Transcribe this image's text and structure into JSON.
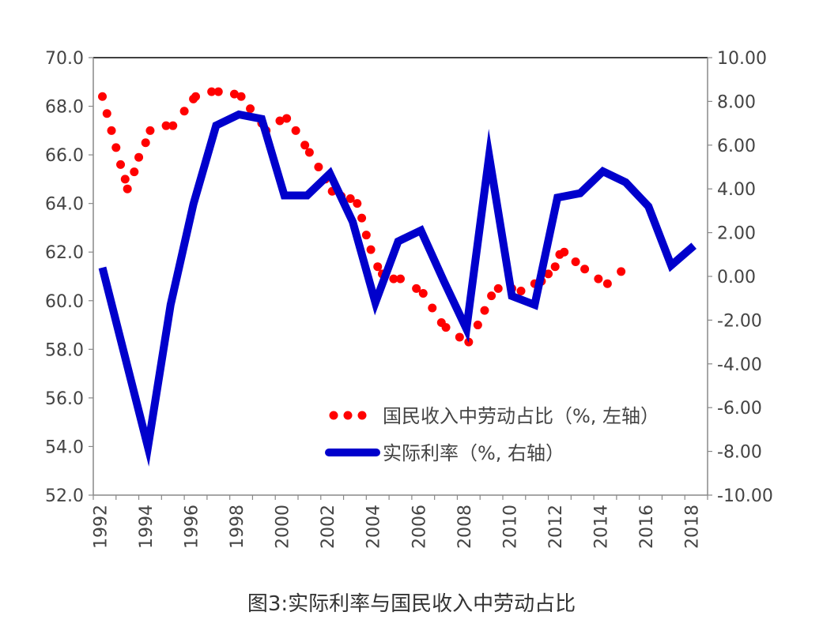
{
  "figure_caption": "图3:实际利率与国民收入中劳动占比",
  "chart_data": {
    "type": "line",
    "x_tick_labels": [
      "1992",
      "1994",
      "1996",
      "1998",
      "2000",
      "2002",
      "2004",
      "2006",
      "2008",
      "2010",
      "2012",
      "2014",
      "2016",
      "2018"
    ],
    "xlim": [
      1992,
      2019
    ],
    "y_left": {
      "ylim": [
        52.0,
        70.0
      ],
      "tick_labels": [
        "52.0",
        "54.0",
        "56.0",
        "58.0",
        "60.0",
        "62.0",
        "64.0",
        "66.0",
        "68.0",
        "70.0"
      ]
    },
    "y_right": {
      "ylim": [
        -10.0,
        10.0
      ],
      "tick_labels": [
        "-10.00",
        "-8.00",
        "-6.00",
        "-4.00",
        "-2.00",
        "0.00",
        "2.00",
        "4.00",
        "6.00",
        "8.00",
        "10.00"
      ]
    },
    "series": [
      {
        "name": "国民收入中劳动占比（%, 左轴）",
        "axis": "left",
        "style": "dotted",
        "color": "#ff0000",
        "points": [
          [
            1992.4,
            68.4
          ],
          [
            1992.6,
            67.7
          ],
          [
            1992.8,
            67.0
          ],
          [
            1993.0,
            66.3
          ],
          [
            1993.2,
            65.6
          ],
          [
            1993.4,
            65.0
          ],
          [
            1993.5,
            64.6
          ],
          [
            1993.8,
            65.3
          ],
          [
            1994.0,
            65.9
          ],
          [
            1994.3,
            66.5
          ],
          [
            1994.5,
            67.0
          ],
          [
            1995.2,
            67.2
          ],
          [
            1995.5,
            67.2
          ],
          [
            1996.0,
            67.8
          ],
          [
            1996.4,
            68.3
          ],
          [
            1996.5,
            68.4
          ],
          [
            1997.2,
            68.6
          ],
          [
            1997.5,
            68.6
          ],
          [
            1998.2,
            68.5
          ],
          [
            1998.5,
            68.4
          ],
          [
            1998.9,
            67.9
          ],
          [
            1999.4,
            67.3
          ],
          [
            1999.6,
            67.0
          ],
          [
            2000.2,
            67.4
          ],
          [
            2000.5,
            67.5
          ],
          [
            2000.9,
            67.0
          ],
          [
            2001.3,
            66.4
          ],
          [
            2001.5,
            66.1
          ],
          [
            2001.9,
            65.5
          ],
          [
            2002.2,
            65.0
          ],
          [
            2002.5,
            64.5
          ],
          [
            2002.9,
            64.3
          ],
          [
            2003.3,
            64.2
          ],
          [
            2003.6,
            64.0
          ],
          [
            2003.8,
            63.4
          ],
          [
            2004.0,
            62.7
          ],
          [
            2004.2,
            62.1
          ],
          [
            2004.5,
            61.4
          ],
          [
            2004.7,
            61.1
          ],
          [
            2005.2,
            60.9
          ],
          [
            2005.5,
            60.9
          ],
          [
            2006.2,
            60.5
          ],
          [
            2006.5,
            60.3
          ],
          [
            2006.9,
            59.7
          ],
          [
            2007.3,
            59.1
          ],
          [
            2007.5,
            58.9
          ],
          [
            2008.1,
            58.5
          ],
          [
            2008.5,
            58.3
          ],
          [
            2008.9,
            59.0
          ],
          [
            2009.2,
            59.6
          ],
          [
            2009.5,
            60.2
          ],
          [
            2009.8,
            60.5
          ],
          [
            2010.4,
            60.5
          ],
          [
            2010.8,
            60.4
          ],
          [
            2011.4,
            60.7
          ],
          [
            2011.7,
            60.8
          ],
          [
            2012.0,
            61.1
          ],
          [
            2012.3,
            61.4
          ],
          [
            2012.5,
            61.9
          ],
          [
            2012.7,
            62.0
          ],
          [
            2013.2,
            61.6
          ],
          [
            2013.6,
            61.3
          ],
          [
            2014.2,
            60.9
          ],
          [
            2014.6,
            60.7
          ],
          [
            2015.2,
            61.2
          ]
        ]
      },
      {
        "name": "实际利率（%, 右轴）",
        "axis": "right",
        "style": "solid",
        "color": "#0000cc",
        "points": [
          [
            1992.4,
            0.4
          ],
          [
            1994.4,
            -7.8
          ],
          [
            1995.4,
            -1.3
          ],
          [
            1996.4,
            3.3
          ],
          [
            1997.4,
            6.9
          ],
          [
            1998.4,
            7.4
          ],
          [
            1999.4,
            7.2
          ],
          [
            2000.4,
            3.7
          ],
          [
            2001.4,
            3.7
          ],
          [
            2002.4,
            4.7
          ],
          [
            2003.4,
            2.5
          ],
          [
            2004.4,
            -1.2
          ],
          [
            2005.4,
            1.6
          ],
          [
            2006.4,
            2.1
          ],
          [
            2007.4,
            -0.2
          ],
          [
            2008.4,
            -2.4
          ],
          [
            2009.4,
            5.5
          ],
          [
            2010.4,
            -0.9
          ],
          [
            2011.4,
            -1.3
          ],
          [
            2012.4,
            3.6
          ],
          [
            2013.4,
            3.8
          ],
          [
            2014.4,
            4.8
          ],
          [
            2015.4,
            4.3
          ],
          [
            2016.4,
            3.2
          ],
          [
            2017.4,
            0.5
          ],
          [
            2018.4,
            1.4
          ]
        ]
      }
    ],
    "legend_position": "bottom-center-inside",
    "grid": false
  }
}
